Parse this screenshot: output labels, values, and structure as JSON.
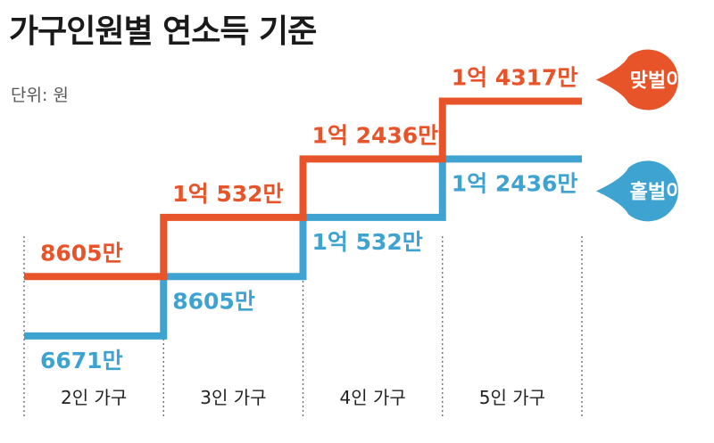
{
  "header": {
    "title": "가구인원별 연소득 기준",
    "unit": "단위: 원"
  },
  "colors": {
    "dual_income": "#E8542A",
    "single_income": "#3EA3D0",
    "grid": "#666666"
  },
  "chart_data": {
    "type": "line",
    "step": true,
    "categories": [
      "2인 가구",
      "3인 가구",
      "4인 가구",
      "5인 가구"
    ],
    "series": [
      {
        "name": "맞벌이",
        "values": [
          86050000,
          105320000,
          124360000,
          143170000
        ],
        "labels": [
          "8605만",
          "1억 532만",
          "1억 2436만",
          "1억 4317만"
        ]
      },
      {
        "name": "홑벌이",
        "values": [
          66710000,
          86050000,
          105320000,
          124360000
        ],
        "labels": [
          "6671만",
          "8605만",
          "1억 532만",
          "1억 2436만"
        ]
      }
    ],
    "ylim": [
      60000000,
      150000000
    ],
    "grid": false,
    "legend_position": "right"
  }
}
